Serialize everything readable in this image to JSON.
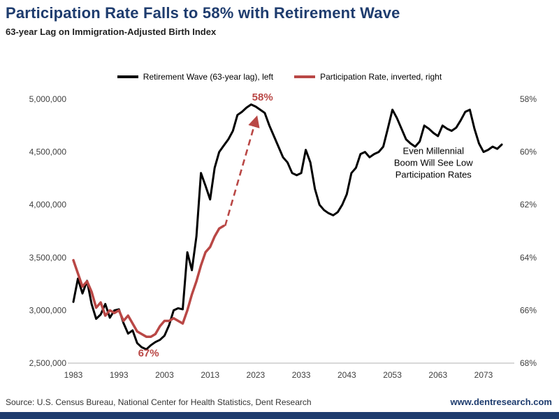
{
  "header": {
    "title": "Participation Rate Falls to 58% with Retirement Wave",
    "subtitle": "63-year Lag on Immigration-Adjusted Birth Index"
  },
  "colors": {
    "navy": "#1e3c6e",
    "red": "#b94745",
    "black": "#000000",
    "axis_text": "#3f3f3f",
    "axis_line": "#b0b0b0"
  },
  "legend": [
    {
      "label": "Retirement Wave (63-year lag), left",
      "color": "#000000"
    },
    {
      "label": "Participation Rate, inverted, right",
      "color": "#b94745"
    }
  ],
  "chart_data": {
    "type": "line",
    "title": "Participation Rate Falls to 58% with Retirement Wave",
    "subtitle": "63-year Lag on Immigration-Adjusted Birth Index",
    "x_ticks": [
      1983,
      1993,
      2003,
      2013,
      2023,
      2033,
      2043,
      2053,
      2063,
      2073
    ],
    "left_axis": {
      "range": [
        2500000,
        5000000
      ],
      "ticks": [
        {
          "label": "5,000,000",
          "value": 5000000
        },
        {
          "label": "4,500,000",
          "value": 4500000
        },
        {
          "label": "4,000,000",
          "value": 4000000
        },
        {
          "label": "3,500,000",
          "value": 3500000
        },
        {
          "label": "3,000,000",
          "value": 3000000
        },
        {
          "label": "2,500,000",
          "value": 2500000
        }
      ]
    },
    "right_axis": {
      "inverted": true,
      "range": [
        58,
        68
      ],
      "ticks": [
        {
          "label": "58%",
          "value": 58
        },
        {
          "label": "60%",
          "value": 60
        },
        {
          "label": "62%",
          "value": 62
        },
        {
          "label": "64%",
          "value": 64
        },
        {
          "label": "66%",
          "value": 66
        },
        {
          "label": "68%",
          "value": 68
        }
      ]
    },
    "series": [
      {
        "id": "retirement-wave-line",
        "name": "Retirement Wave (63-year lag), left",
        "axis": "left",
        "color": "#000000",
        "width": 3,
        "points": [
          [
            1983,
            3080000
          ],
          [
            1984,
            3300000
          ],
          [
            1985,
            3160000
          ],
          [
            1986,
            3280000
          ],
          [
            1987,
            3060000
          ],
          [
            1988,
            2920000
          ],
          [
            1989,
            2960000
          ],
          [
            1990,
            3060000
          ],
          [
            1991,
            2930000
          ],
          [
            1992,
            3000000
          ],
          [
            1993,
            3010000
          ],
          [
            1994,
            2880000
          ],
          [
            1995,
            2780000
          ],
          [
            1996,
            2810000
          ],
          [
            1997,
            2690000
          ],
          [
            1998,
            2650000
          ],
          [
            1999,
            2630000
          ],
          [
            2000,
            2670000
          ],
          [
            2001,
            2700000
          ],
          [
            2002,
            2720000
          ],
          [
            2003,
            2760000
          ],
          [
            2004,
            2860000
          ],
          [
            2005,
            3000000
          ],
          [
            2006,
            3020000
          ],
          [
            2007,
            3010000
          ],
          [
            2008,
            3550000
          ],
          [
            2009,
            3380000
          ],
          [
            2010,
            3700000
          ],
          [
            2011,
            4300000
          ],
          [
            2012,
            4180000
          ],
          [
            2013,
            4050000
          ],
          [
            2014,
            4350000
          ],
          [
            2015,
            4500000
          ],
          [
            2016,
            4560000
          ],
          [
            2017,
            4620000
          ],
          [
            2018,
            4700000
          ],
          [
            2019,
            4850000
          ],
          [
            2020,
            4880000
          ],
          [
            2021,
            4920000
          ],
          [
            2022,
            4950000
          ],
          [
            2023,
            4930000
          ],
          [
            2024,
            4900000
          ],
          [
            2025,
            4870000
          ],
          [
            2026,
            4750000
          ],
          [
            2027,
            4650000
          ],
          [
            2028,
            4550000
          ],
          [
            2029,
            4450000
          ],
          [
            2030,
            4400000
          ],
          [
            2031,
            4300000
          ],
          [
            2032,
            4280000
          ],
          [
            2033,
            4300000
          ],
          [
            2034,
            4520000
          ],
          [
            2035,
            4400000
          ],
          [
            2036,
            4150000
          ],
          [
            2037,
            4000000
          ],
          [
            2038,
            3950000
          ],
          [
            2039,
            3920000
          ],
          [
            2040,
            3900000
          ],
          [
            2041,
            3930000
          ],
          [
            2042,
            4000000
          ],
          [
            2043,
            4100000
          ],
          [
            2044,
            4300000
          ],
          [
            2045,
            4350000
          ],
          [
            2046,
            4480000
          ],
          [
            2047,
            4500000
          ],
          [
            2048,
            4450000
          ],
          [
            2049,
            4480000
          ],
          [
            2050,
            4500000
          ],
          [
            2051,
            4550000
          ],
          [
            2052,
            4720000
          ],
          [
            2053,
            4900000
          ],
          [
            2054,
            4820000
          ],
          [
            2055,
            4720000
          ],
          [
            2056,
            4620000
          ],
          [
            2057,
            4580000
          ],
          [
            2058,
            4550000
          ],
          [
            2059,
            4600000
          ],
          [
            2060,
            4750000
          ],
          [
            2061,
            4720000
          ],
          [
            2062,
            4680000
          ],
          [
            2063,
            4650000
          ],
          [
            2064,
            4750000
          ],
          [
            2065,
            4720000
          ],
          [
            2066,
            4700000
          ],
          [
            2067,
            4730000
          ],
          [
            2068,
            4800000
          ],
          [
            2069,
            4880000
          ],
          [
            2070,
            4900000
          ],
          [
            2071,
            4720000
          ],
          [
            2072,
            4580000
          ],
          [
            2073,
            4500000
          ],
          [
            2074,
            4520000
          ],
          [
            2075,
            4550000
          ],
          [
            2076,
            4530000
          ],
          [
            2077,
            4570000
          ]
        ]
      },
      {
        "id": "participation-rate-line",
        "name": "Participation Rate, inverted, right",
        "axis": "right",
        "color": "#b94745",
        "width": 3.5,
        "points": [
          [
            1983,
            64.1
          ],
          [
            1984,
            64.6
          ],
          [
            1985,
            65.1
          ],
          [
            1986,
            64.9
          ],
          [
            1987,
            65.3
          ],
          [
            1988,
            65.9
          ],
          [
            1989,
            65.7
          ],
          [
            1990,
            66.2
          ],
          [
            1991,
            66.0
          ],
          [
            1992,
            66.1
          ],
          [
            1993,
            66.0
          ],
          [
            1994,
            66.4
          ],
          [
            1995,
            66.2
          ],
          [
            1996,
            66.5
          ],
          [
            1997,
            66.8
          ],
          [
            1998,
            66.9
          ],
          [
            1999,
            67.0
          ],
          [
            2000,
            67.0
          ],
          [
            2001,
            66.9
          ],
          [
            2002,
            66.6
          ],
          [
            2003,
            66.4
          ],
          [
            2004,
            66.4
          ],
          [
            2005,
            66.3
          ],
          [
            2006,
            66.4
          ],
          [
            2007,
            66.5
          ],
          [
            2008,
            66.0
          ],
          [
            2009,
            65.4
          ],
          [
            2010,
            64.9
          ],
          [
            2011,
            64.3
          ],
          [
            2012,
            63.8
          ],
          [
            2013,
            63.6
          ],
          [
            2014,
            63.2
          ],
          [
            2015,
            62.9
          ],
          [
            2016,
            62.8
          ]
        ]
      }
    ],
    "projection_arrow": {
      "axis": "right",
      "from": [
        2016.3,
        62.8
      ],
      "to": [
        2023.2,
        58.7
      ],
      "color": "#b94745"
    },
    "annotations": [
      {
        "id": "annotation-peak-rate",
        "text": "58%",
        "axis": "right",
        "x": 2024.5,
        "y": 58.05,
        "color": "#b94745",
        "bold": true,
        "size": 15
      },
      {
        "id": "annotation-trough-rate",
        "text": "67%",
        "axis": "right",
        "x": 1999.5,
        "y": 67.75,
        "color": "#b94745",
        "bold": true,
        "size": 15
      },
      {
        "id": "annotation-millennial-note",
        "lines": [
          "Even Millennial",
          "Boom Will See Low",
          "Participation Rates"
        ],
        "axis": "left",
        "x": 2062,
        "y": 4480000,
        "color": "#000000",
        "bold": false,
        "size": 13,
        "line_height": 17
      }
    ]
  },
  "footer": {
    "source": "Source: U.S. Census Bureau, National Center for Health Statistics, Dent Research",
    "website": "www.dentresearch.com"
  }
}
